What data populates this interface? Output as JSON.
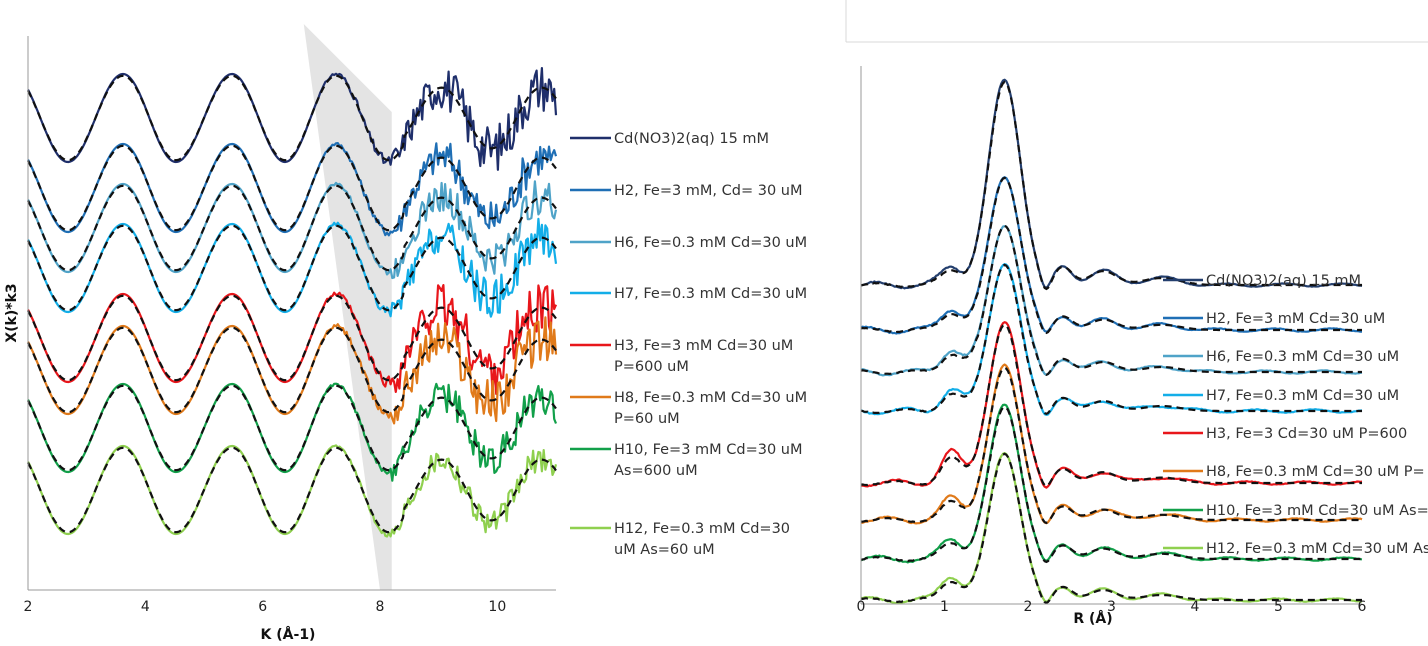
{
  "chart_data": [
    {
      "type": "line",
      "xlabel": "K (Å-1)",
      "ylabel": "X(k)*k3",
      "xlim": [
        2,
        11
      ],
      "xticks": [
        "2",
        "4",
        "6",
        "8",
        "10"
      ],
      "highlight_band": {
        "x_top": [
          6.7,
          8.2
        ],
        "x_bottom": [
          8.0,
          8.2
        ],
        "color": "#e4e4e4"
      },
      "fit_style": "black dashed",
      "series": [
        {
          "name": "Cd(NO3)2(aq) 15 mM",
          "legend_lines": [
            "Cd(NO3)2(aq) 15 mM"
          ],
          "color": "#1f2f6b",
          "noise": 0.55
        },
        {
          "name": "H2, Fe=3 mM, Cd= 30 uM",
          "legend_lines": [
            "H2, Fe=3 mM, Cd= 30 uM"
          ],
          "color": "#1f6fb5",
          "noise": 0.45
        },
        {
          "name": "H6, Fe=0.3 mM Cd=30 uM",
          "legend_lines": [
            "H6, Fe=0.3 mM Cd=30 uM"
          ],
          "color": "#4fa3c8",
          "noise": 0.4
        },
        {
          "name": "H7, Fe=0.3 mM Cd=30 uM",
          "legend_lines": [
            "H7, Fe=0.3 mM Cd=30 uM"
          ],
          "color": "#13aee8",
          "noise": 0.45
        },
        {
          "name": "H3, Fe=3 mM Cd=30 uM P=600 uM",
          "legend_lines": [
            "H3, Fe=3 mM Cd=30 uM",
            "P=600 uM"
          ],
          "color": "#e8161b",
          "noise": 0.6
        },
        {
          "name": "H8, Fe=0.3 mM Cd=30 uM P=60 uM",
          "legend_lines": [
            "H8, Fe=0.3 mM Cd=30 uM",
            "P=60 uM"
          ],
          "color": "#e07a1a",
          "noise": 0.55
        },
        {
          "name": "H10, Fe=3 mM Cd=30 uM As=600 uM",
          "legend_lines": [
            "H10, Fe=3 mM Cd=30 uM",
            "As=600 uM"
          ],
          "color": "#12a04a",
          "noise": 0.4
        },
        {
          "name": "H12, Fe=0.3 mM Cd=30 uM As=60 uM",
          "legend_lines": [
            "H12, Fe=0.3 mM Cd=30",
            "uM As=60 uM"
          ],
          "color": "#8fd04f",
          "noise": 0.3
        }
      ]
    },
    {
      "type": "line",
      "xlabel": "R (Å)",
      "ylabel": "",
      "xlim": [
        0,
        6
      ],
      "xticks": [
        "0",
        "1",
        "2",
        "3",
        "4",
        "5",
        "6"
      ],
      "fit_style": "black dashed",
      "series": [
        {
          "name": "Cd(NO3)2(aq) 15 mM",
          "color": "#243f6e",
          "peak": 1.0
        },
        {
          "name": "H2, Fe=3 mM Cd=30 uM",
          "color": "#1f6fb5",
          "peak": 0.75
        },
        {
          "name": "H6, Fe=0.3 mM Cd=30 uM",
          "color": "#4fa3c8",
          "peak": 0.72
        },
        {
          "name": "H7, Fe=0.3 mM Cd=30 uM",
          "color": "#13aee8",
          "peak": 0.72
        },
        {
          "name": "H3, Fe=3 Cd=30 uM P=600",
          "color": "#e8161b",
          "peak": 0.78
        },
        {
          "name": "H8, Fe=0.3 mM Cd=30 uM P=",
          "color": "#e07a1a",
          "peak": 0.75
        },
        {
          "name": "H10, Fe=3 mM Cd=30 uM As=",
          "color": "#12a04a",
          "peak": 0.75
        },
        {
          "name": "H12, Fe=0.3 mM Cd=30 uM As",
          "color": "#8fd04f",
          "peak": 0.72
        }
      ]
    }
  ]
}
